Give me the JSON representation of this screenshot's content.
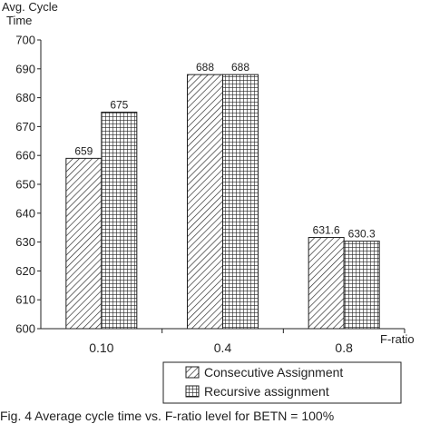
{
  "chart_data": {
    "type": "bar",
    "ylabel": [
      "Avg. Cycle",
      "Time"
    ],
    "xlabel": "F-ratio",
    "categories": [
      "0.10",
      "0.4",
      "0.8"
    ],
    "ylim": [
      600,
      700
    ],
    "yticks": [
      600,
      610,
      620,
      630,
      640,
      650,
      660,
      670,
      680,
      690,
      700
    ],
    "series": [
      {
        "name": "Consecutive Assignment",
        "values": [
          659,
          688,
          631.6
        ],
        "labels": [
          "659",
          "688",
          "631.6"
        ],
        "pattern": "diagonal-hatch"
      },
      {
        "name": "Recursive assignment",
        "values": [
          675,
          688,
          630.3
        ],
        "labels": [
          "675",
          "688",
          "630.3"
        ],
        "pattern": "grid-hatch"
      }
    ],
    "legend_position": "bottom-right",
    "grid": false
  },
  "caption": "Fig. 4  Average cycle time vs. F-ratio level for BETN = 100%"
}
